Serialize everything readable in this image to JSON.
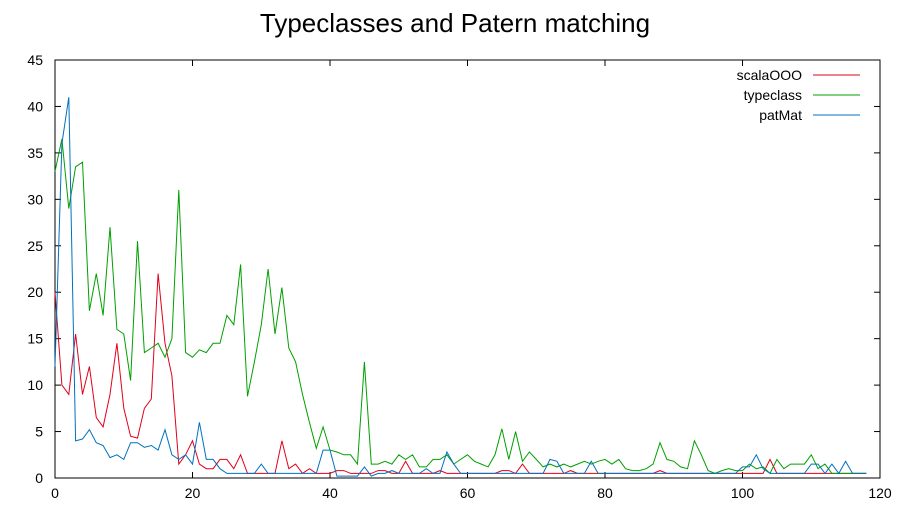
{
  "chart_data": {
    "type": "line",
    "title": "Typeclasses and Patern matching",
    "xlabel": "",
    "ylabel": "",
    "xlim": [
      0,
      120
    ],
    "ylim": [
      0,
      45
    ],
    "xticks": [
      0,
      20,
      40,
      60,
      80,
      100,
      120
    ],
    "yticks": [
      0,
      5,
      10,
      15,
      20,
      25,
      30,
      35,
      40,
      45
    ],
    "grid": false,
    "legend_position": "top-right",
    "series": [
      {
        "name": "scalaOOO",
        "color": "#e0001b",
        "x": [
          0,
          1,
          2,
          3,
          4,
          5,
          6,
          7,
          8,
          9,
          10,
          11,
          12,
          13,
          14,
          15,
          16,
          17,
          18,
          19,
          20,
          21,
          22,
          23,
          24,
          25,
          26,
          27,
          28,
          29,
          30,
          31,
          32,
          33,
          34,
          35,
          36,
          37,
          38,
          39,
          40,
          41,
          42,
          43,
          44,
          45,
          46,
          47,
          48,
          49,
          50,
          51,
          52,
          53,
          54,
          55,
          56,
          57,
          58,
          59,
          60,
          61,
          62,
          63,
          64,
          65,
          66,
          67,
          68,
          69,
          70,
          71,
          72,
          73,
          74,
          75,
          76,
          77,
          78,
          79,
          80,
          81,
          82,
          83,
          84,
          85,
          86,
          87,
          88,
          89,
          90,
          91,
          92,
          93,
          94,
          95,
          96,
          97,
          98,
          99,
          100,
          101,
          102,
          103,
          104,
          105,
          106,
          107,
          108,
          109,
          110,
          111,
          112,
          113,
          114,
          115,
          116,
          117,
          118
        ],
        "values": [
          20,
          10,
          9,
          15.5,
          9,
          12,
          6.5,
          5.5,
          9,
          14.5,
          7.5,
          4.5,
          4.3,
          7.5,
          8.5,
          22,
          14.5,
          11,
          1.5,
          2.5,
          4,
          1.5,
          1,
          1,
          2,
          2,
          1,
          2.5,
          0.5,
          0.5,
          0.5,
          0.5,
          0.5,
          4,
          1,
          1.5,
          0.5,
          1,
          0.5,
          0.5,
          0.5,
          0.8,
          0.8,
          0.5,
          0.5,
          0.5,
          0.5,
          0.8,
          0.8,
          0.5,
          0.5,
          1.8,
          0.5,
          0.5,
          0.5,
          0.5,
          0.8,
          0.5,
          0.5,
          0.5,
          0.5,
          0.5,
          0.5,
          0.5,
          0.5,
          0.8,
          0.8,
          0.5,
          1.5,
          0.5,
          0.5,
          0.5,
          0.5,
          0.5,
          0.5,
          0.8,
          0.5,
          0.5,
          0.5,
          0.5,
          0.5,
          0.5,
          0.5,
          0.5,
          0.5,
          0.5,
          0.5,
          0.5,
          0.8,
          0.5,
          0.5,
          0.5,
          0.5,
          0.5,
          0.5,
          0.5,
          0.5,
          0.5,
          0.5,
          0.5,
          0.5,
          0.5,
          0.5,
          0.5,
          2,
          0.5,
          0.5,
          0.5,
          0.5,
          0.5,
          0.5,
          0.5,
          0.5,
          0.5,
          0.5,
          0.5,
          0.5,
          0.5,
          0.5
        ]
      },
      {
        "name": "typeclass",
        "color": "#00a000",
        "x": [
          0,
          1,
          2,
          3,
          4,
          5,
          6,
          7,
          8,
          9,
          10,
          11,
          12,
          13,
          14,
          15,
          16,
          17,
          18,
          19,
          20,
          21,
          22,
          23,
          24,
          25,
          26,
          27,
          28,
          29,
          30,
          31,
          32,
          33,
          34,
          35,
          36,
          37,
          38,
          39,
          40,
          41,
          42,
          43,
          44,
          45,
          46,
          47,
          48,
          49,
          50,
          51,
          52,
          53,
          54,
          55,
          56,
          57,
          58,
          59,
          60,
          61,
          62,
          63,
          64,
          65,
          66,
          67,
          68,
          69,
          70,
          71,
          72,
          73,
          74,
          75,
          76,
          77,
          78,
          79,
          80,
          81,
          82,
          83,
          84,
          85,
          86,
          87,
          88,
          89,
          90,
          91,
          92,
          93,
          94,
          95,
          96,
          97,
          98,
          99,
          100,
          101,
          102,
          103,
          104,
          105,
          106,
          107,
          108,
          109,
          110,
          111,
          112,
          113,
          114,
          115,
          116,
          117,
          118
        ],
        "values": [
          33,
          36.5,
          29,
          33.5,
          34,
          18,
          22,
          17.5,
          27,
          16,
          15.5,
          10.5,
          25.5,
          13.5,
          14,
          14.5,
          13,
          15,
          31,
          13.5,
          13,
          13.8,
          13.5,
          14.5,
          14.5,
          17.5,
          16.5,
          23,
          8.8,
          12.5,
          16.5,
          22.5,
          15.5,
          20.5,
          14,
          12.5,
          9,
          6,
          3.2,
          5.5,
          3,
          2.8,
          2.5,
          2.5,
          1.5,
          12.5,
          1.5,
          1.5,
          1.8,
          1.5,
          2.5,
          2,
          2.5,
          1.2,
          1.2,
          2,
          2,
          2.5,
          1.5,
          2,
          2.5,
          1.8,
          1.5,
          1.2,
          2.5,
          5.3,
          2,
          5,
          1.8,
          2.8,
          2,
          1.2,
          1.5,
          1.2,
          1.5,
          1.2,
          1.5,
          1.8,
          1.5,
          1.8,
          2,
          1.5,
          2,
          1,
          0.8,
          0.8,
          1,
          1.5,
          3.8,
          2,
          1.8,
          1.2,
          1,
          4,
          2.5,
          0.8,
          0.5,
          0.8,
          1,
          0.8,
          0.8,
          1.5,
          1,
          1.2,
          0.5,
          2,
          1,
          1.5,
          1.5,
          1.5,
          2.5,
          1,
          1.5,
          0.5,
          0.5,
          0.5,
          0.5,
          0.5,
          0.5
        ]
      },
      {
        "name": "patMat",
        "color": "#0070c0",
        "x": [
          0,
          1,
          2,
          3,
          4,
          5,
          6,
          7,
          8,
          9,
          10,
          11,
          12,
          13,
          14,
          15,
          16,
          17,
          18,
          19,
          20,
          21,
          22,
          23,
          24,
          25,
          26,
          27,
          28,
          29,
          30,
          31,
          32,
          33,
          34,
          35,
          36,
          37,
          38,
          39,
          40,
          41,
          42,
          43,
          44,
          45,
          46,
          47,
          48,
          49,
          50,
          51,
          52,
          53,
          54,
          55,
          56,
          57,
          58,
          59,
          60,
          61,
          62,
          63,
          64,
          65,
          66,
          67,
          68,
          69,
          70,
          71,
          72,
          73,
          74,
          75,
          76,
          77,
          78,
          79,
          80,
          81,
          82,
          83,
          84,
          85,
          86,
          87,
          88,
          89,
          90,
          91,
          92,
          93,
          94,
          95,
          96,
          97,
          98,
          99,
          100,
          101,
          102,
          103,
          104,
          105,
          106,
          107,
          108,
          109,
          110,
          111,
          112,
          113,
          114,
          115,
          116,
          117,
          118
        ],
        "values": [
          12,
          36,
          41,
          4,
          4.2,
          5.2,
          3.8,
          3.5,
          2.2,
          2.5,
          2,
          3.8,
          3.8,
          3.3,
          3.5,
          3,
          5.2,
          2.5,
          2,
          2.5,
          1.5,
          6,
          2,
          2,
          1,
          0.5,
          0.5,
          0.5,
          0.5,
          0.5,
          1.5,
          0.5,
          0.5,
          0.5,
          0.5,
          0.5,
          0.5,
          0.5,
          0.5,
          3,
          3,
          0.2,
          0.2,
          0.2,
          0.2,
          1.2,
          0.2,
          0.5,
          0.5,
          0.8,
          0.5,
          0.5,
          0.5,
          0.5,
          1,
          0.5,
          0.5,
          2.8,
          1.5,
          0.5,
          0.5,
          0.5,
          0.5,
          0.5,
          0.5,
          0.5,
          0.5,
          0.5,
          0.5,
          0.5,
          0.5,
          0.5,
          2,
          1.8,
          0.5,
          0.5,
          0.5,
          0.5,
          1.8,
          0.5,
          0.5,
          0.5,
          0.5,
          0.5,
          0.5,
          0.5,
          0.5,
          0.5,
          0.5,
          0.5,
          0.5,
          0.5,
          0.5,
          0.5,
          0.5,
          0.5,
          0.5,
          0.5,
          0.5,
          0.5,
          1.2,
          1.2,
          2.5,
          1,
          0.5,
          0.5,
          0.5,
          0.5,
          0.5,
          0.5,
          1.5,
          1.5,
          0.5,
          1.5,
          0.5,
          1.8,
          0.5,
          0.5,
          0.5
        ]
      }
    ]
  }
}
